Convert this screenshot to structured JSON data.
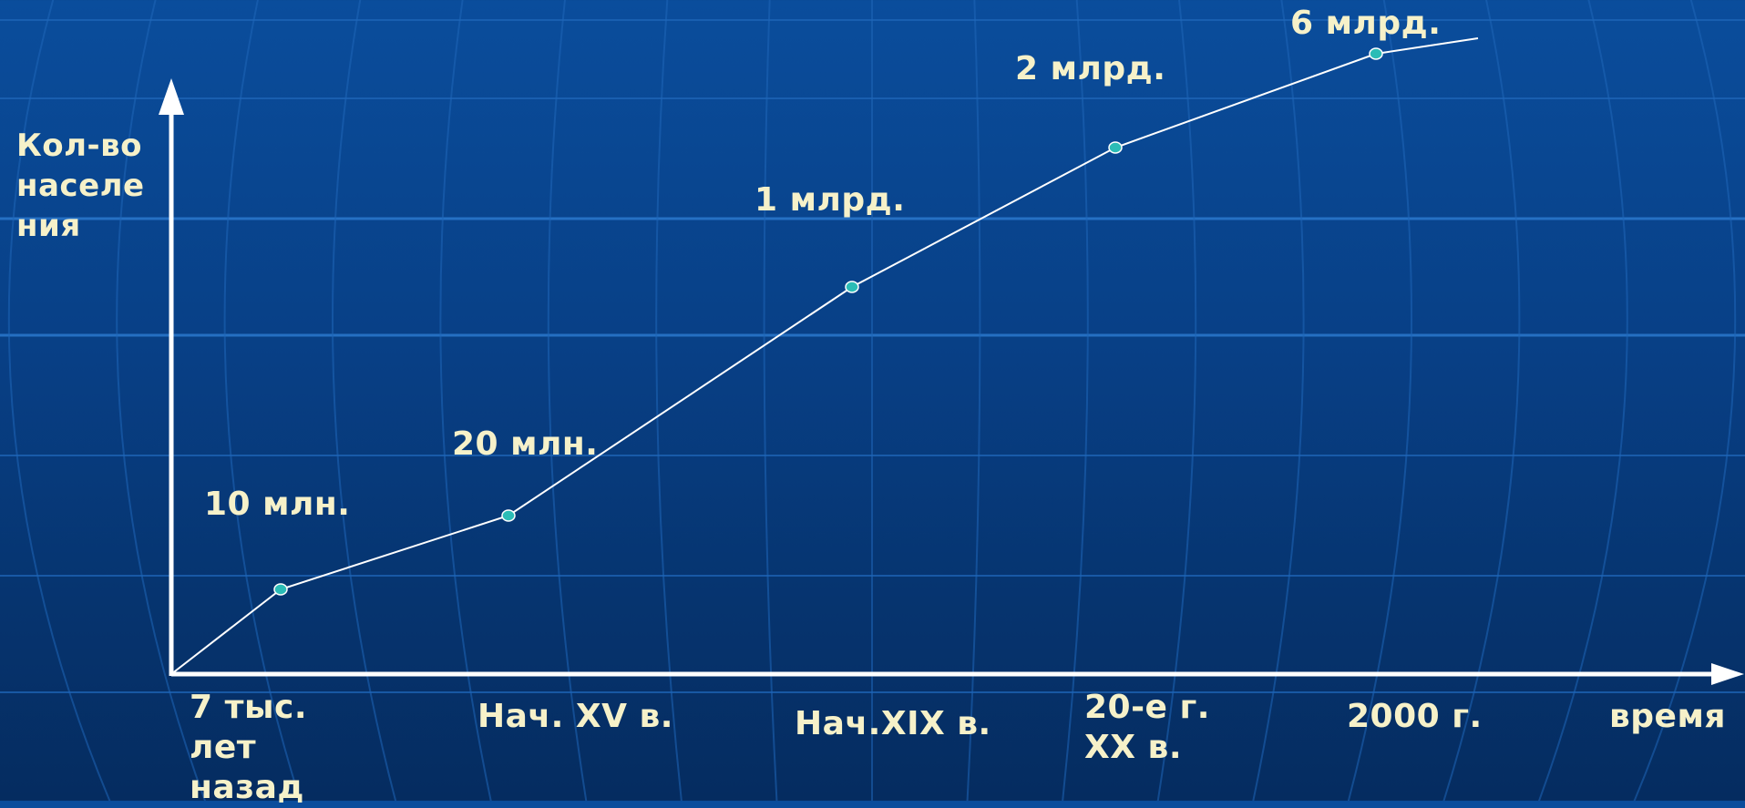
{
  "chart_data": {
    "type": "line",
    "ylabel": "Кол-во\nнаселе\nния",
    "xlabel": "время",
    "categories": [
      "7 тыс.\nлет\nназад",
      "Нач. XV в.",
      "Нач.XIX в.",
      "20-е г.\nXX в.",
      "2000 г."
    ],
    "points": [
      {
        "label": "10 млн."
      },
      {
        "label": "20 млн."
      },
      {
        "label": "1 млрд."
      },
      {
        "label": "2 млрд."
      },
      {
        "label": "6 млрд."
      }
    ],
    "grid": false,
    "colors": {
      "line": "#ffffff",
      "marker_fill": "#2bbcb6",
      "marker_stroke": "#ffffff",
      "text": "#f6f1c9",
      "axis": "#ffffff"
    }
  }
}
